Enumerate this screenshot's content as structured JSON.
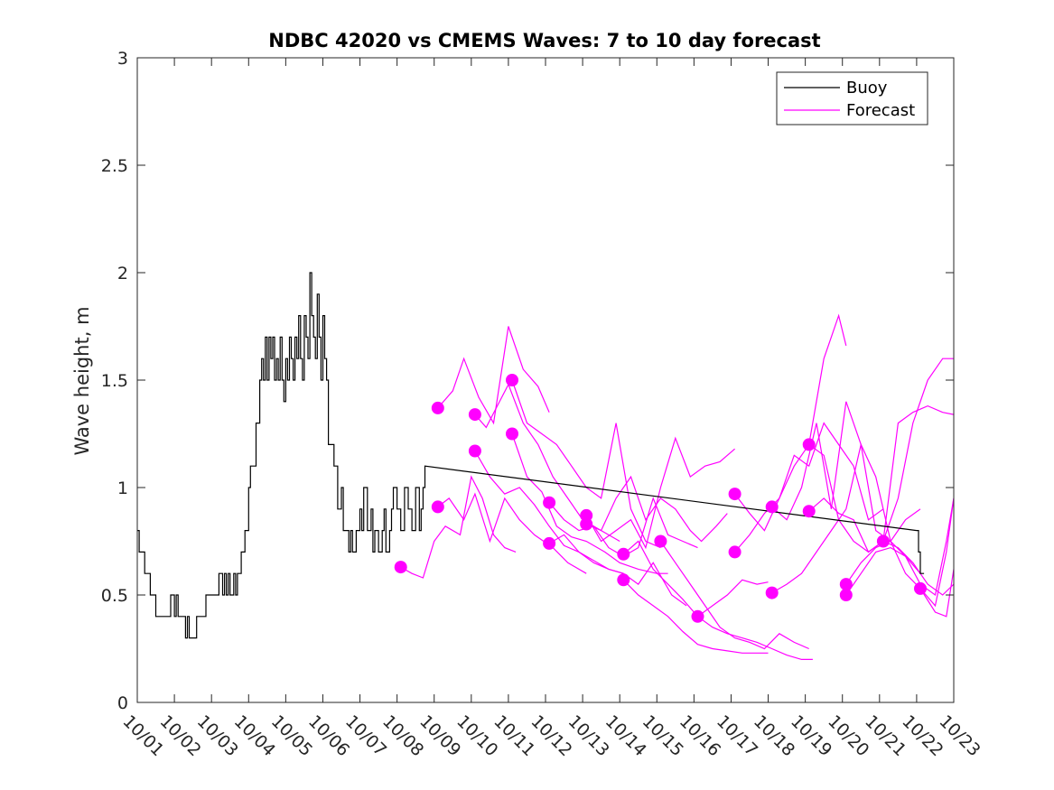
{
  "chart_data": {
    "type": "line",
    "title": "NDBC 42020 vs CMEMS Waves: 7 to 10 day forecast",
    "xlabel": "",
    "ylabel": "Wave height, m",
    "xlim": [
      1,
      23
    ],
    "ylim": [
      0,
      3
    ],
    "y_ticks": [
      0,
      0.5,
      1,
      1.5,
      2,
      2.5,
      3
    ],
    "y_tick_labels": [
      "0",
      "0.5",
      "1",
      "1.5",
      "2",
      "2.5",
      "3"
    ],
    "x_ticks": [
      1,
      2,
      3,
      4,
      5,
      6,
      7,
      8,
      9,
      10,
      11,
      12,
      13,
      14,
      15,
      16,
      17,
      18,
      19,
      20,
      21,
      22,
      23
    ],
    "x_tick_labels": [
      "10/01",
      "10/02",
      "10/03",
      "10/04",
      "10/05",
      "10/06",
      "10/07",
      "10/08",
      "10/09",
      "10/10",
      "10/11",
      "10/12",
      "10/13",
      "10/14",
      "10/15",
      "10/16",
      "10/17",
      "10/18",
      "10/19",
      "10/20",
      "10/21",
      "10/22",
      "10/23"
    ],
    "legend": {
      "position": "top-right",
      "entries": [
        "Buoy",
        "Forecast"
      ]
    },
    "colors": {
      "buoy": "#000000",
      "forecast": "#ff00ff",
      "axis": "#262626"
    },
    "buoy": {
      "name": "Buoy",
      "x": [
        1.0,
        1.05,
        1.1,
        1.2,
        1.3,
        1.35,
        1.4,
        1.5,
        1.55,
        1.6,
        1.7,
        1.8,
        1.9,
        2.0,
        2.05,
        2.1,
        2.15,
        2.2,
        2.3,
        2.35,
        2.4,
        2.45,
        2.5,
        2.6,
        2.7,
        2.8,
        2.85,
        2.9,
        3.0,
        3.1,
        3.2,
        3.3,
        3.35,
        3.4,
        3.45,
        3.5,
        3.6,
        3.65,
        3.7,
        3.75,
        3.8,
        3.9,
        4.0,
        4.05,
        4.1,
        4.2,
        4.3,
        4.35,
        4.4,
        4.45,
        4.5,
        4.55,
        4.6,
        4.65,
        4.7,
        4.75,
        4.8,
        4.85,
        4.9,
        4.95,
        5.0,
        5.05,
        5.1,
        5.15,
        5.2,
        5.25,
        5.3,
        5.35,
        5.4,
        5.45,
        5.5,
        5.55,
        5.6,
        5.65,
        5.7,
        5.75,
        5.8,
        5.85,
        5.9,
        5.95,
        6.0,
        6.05,
        6.1,
        6.15,
        6.2,
        6.3,
        6.4,
        6.5,
        6.55,
        6.6,
        6.7,
        6.75,
        6.8,
        6.9,
        7.0,
        7.05,
        7.1,
        7.2,
        7.3,
        7.35,
        7.4,
        7.5,
        7.6,
        7.65,
        7.7,
        7.8,
        7.85,
        7.9,
        8.0,
        8.1,
        8.2,
        8.3,
        8.4,
        8.5,
        8.6,
        8.65,
        8.7,
        8.75,
        22.0,
        22.05,
        22.1,
        22.15,
        22.2
      ],
      "values": [
        0.8,
        0.7,
        0.7,
        0.6,
        0.6,
        0.5,
        0.5,
        0.4,
        0.4,
        0.4,
        0.4,
        0.4,
        0.5,
        0.4,
        0.5,
        0.4,
        0.4,
        0.4,
        0.3,
        0.4,
        0.3,
        0.3,
        0.3,
        0.4,
        0.4,
        0.4,
        0.5,
        0.5,
        0.5,
        0.5,
        0.6,
        0.5,
        0.6,
        0.5,
        0.6,
        0.5,
        0.6,
        0.5,
        0.6,
        0.6,
        0.7,
        0.8,
        1.0,
        1.1,
        1.1,
        1.3,
        1.5,
        1.6,
        1.5,
        1.7,
        1.5,
        1.7,
        1.6,
        1.7,
        1.5,
        1.6,
        1.5,
        1.7,
        1.5,
        1.4,
        1.6,
        1.5,
        1.7,
        1.6,
        1.5,
        1.7,
        1.6,
        1.8,
        1.6,
        1.5,
        1.8,
        1.7,
        1.6,
        2.0,
        1.8,
        1.7,
        1.6,
        1.9,
        1.7,
        1.5,
        1.8,
        1.6,
        1.5,
        1.2,
        1.2,
        1.1,
        0.9,
        1.0,
        0.8,
        0.8,
        0.7,
        0.8,
        0.7,
        0.8,
        0.9,
        0.8,
        1.0,
        0.8,
        0.9,
        0.7,
        0.8,
        0.7,
        0.8,
        0.9,
        0.7,
        0.8,
        0.9,
        1.0,
        0.9,
        0.8,
        1.0,
        0.9,
        0.8,
        1.0,
        0.8,
        0.9,
        1.0,
        1.1,
        0.8,
        0.7,
        0.6,
        0.6,
        0.6
      ]
    },
    "forecast": {
      "name": "Forecast",
      "series": [
        {
          "x": [
            8.1,
            8.4,
            8.7,
            9.0,
            9.3,
            9.7,
            10.0,
            10.3,
            10.6,
            10.9,
            11.2
          ],
          "values": [
            0.63,
            0.6,
            0.58,
            0.75,
            0.82,
            0.78,
            1.05,
            0.95,
            0.78,
            0.72,
            0.7
          ]
        },
        {
          "x": [
            9.1,
            9.5,
            9.8,
            10.2,
            10.6,
            11.0,
            11.4,
            11.8,
            12.1
          ],
          "values": [
            1.37,
            1.45,
            1.6,
            1.42,
            1.3,
            1.75,
            1.55,
            1.47,
            1.35
          ]
        },
        {
          "x": [
            9.1,
            9.4,
            9.8,
            10.1,
            10.5,
            10.9,
            11.3,
            11.7,
            12.2,
            12.6,
            13.1
          ],
          "values": [
            0.91,
            0.95,
            0.85,
            0.97,
            0.75,
            0.95,
            0.85,
            0.78,
            0.72,
            0.65,
            0.6
          ]
        },
        {
          "x": [
            10.1,
            10.4,
            10.7,
            11.0,
            11.4,
            11.8,
            12.2,
            12.6,
            13.0,
            13.5,
            14.0
          ],
          "values": [
            1.34,
            1.28,
            1.38,
            1.48,
            1.3,
            1.2,
            1.05,
            0.95,
            0.85,
            0.8,
            0.75
          ]
        },
        {
          "x": [
            10.1,
            10.5,
            10.9,
            11.3,
            11.7,
            12.1,
            12.5,
            12.9,
            13.3,
            13.7,
            14.1
          ],
          "values": [
            1.17,
            1.05,
            0.97,
            1.0,
            0.92,
            0.82,
            0.73,
            0.7,
            0.66,
            0.62,
            0.6
          ]
        },
        {
          "x": [
            11.1,
            11.5,
            11.9,
            12.3,
            12.7,
            13.1,
            13.5,
            13.9,
            14.3,
            14.7,
            15.1
          ],
          "values": [
            1.5,
            1.3,
            1.25,
            1.2,
            1.1,
            1.0,
            0.95,
            1.3,
            0.9,
            0.75,
            0.72
          ]
        },
        {
          "x": [
            11.1,
            11.5,
            11.9,
            12.3,
            12.7,
            13.1,
            13.6,
            14.0,
            14.5,
            15.0,
            15.3
          ],
          "values": [
            1.25,
            1.05,
            0.98,
            0.82,
            0.77,
            0.75,
            0.7,
            0.65,
            0.62,
            0.6,
            0.6
          ]
        },
        {
          "x": [
            12.1,
            12.5,
            12.9,
            13.3,
            13.7,
            14.1,
            14.5,
            14.9,
            15.3,
            15.7,
            16.1
          ],
          "values": [
            0.93,
            0.85,
            0.8,
            0.82,
            0.72,
            0.68,
            0.72,
            0.95,
            0.78,
            0.75,
            0.72
          ]
        },
        {
          "x": [
            12.1,
            12.5,
            12.9,
            13.3,
            13.7,
            14.1,
            14.5,
            14.9,
            15.4,
            15.8
          ],
          "values": [
            0.74,
            0.78,
            0.7,
            0.65,
            0.62,
            0.6,
            0.55,
            0.65,
            0.5,
            0.45
          ]
        },
        {
          "x": [
            13.1,
            13.5,
            13.9,
            14.3,
            14.7,
            15.1,
            15.5,
            15.9,
            16.3,
            16.7,
            17.1
          ],
          "values": [
            0.87,
            0.75,
            0.8,
            0.85,
            0.72,
            1.0,
            1.23,
            1.05,
            1.1,
            1.12,
            1.18
          ]
        },
        {
          "x": [
            13.1,
            13.5,
            13.9,
            14.3,
            14.7,
            15.1,
            15.5,
            15.9,
            16.2,
            16.6,
            16.9
          ],
          "values": [
            0.83,
            0.8,
            0.95,
            1.05,
            0.85,
            0.95,
            0.9,
            0.8,
            0.75,
            0.82,
            0.88
          ]
        },
        {
          "x": [
            14.1,
            14.5,
            14.9,
            15.3,
            15.7,
            16.1,
            16.5,
            16.9,
            17.3,
            17.7,
            18.0
          ],
          "values": [
            0.69,
            0.75,
            0.62,
            0.55,
            0.48,
            0.4,
            0.45,
            0.5,
            0.57,
            0.55,
            0.56
          ]
        },
        {
          "x": [
            14.1,
            14.5,
            14.9,
            15.3,
            15.7,
            16.1,
            16.5,
            16.9,
            17.3,
            17.7,
            18.0
          ],
          "values": [
            0.57,
            0.5,
            0.45,
            0.4,
            0.33,
            0.27,
            0.25,
            0.24,
            0.23,
            0.23,
            0.23
          ]
        },
        {
          "x": [
            15.1,
            15.5,
            15.9,
            16.3,
            16.7,
            17.1,
            17.5,
            17.9,
            18.3,
            18.7,
            19.1
          ],
          "values": [
            0.75,
            0.65,
            0.55,
            0.45,
            0.35,
            0.3,
            0.28,
            0.25,
            0.32,
            0.28,
            0.25
          ]
        },
        {
          "x": [
            16.1,
            16.5,
            16.9,
            17.3,
            17.7,
            18.1,
            18.5,
            18.9,
            19.2
          ],
          "values": [
            0.4,
            0.35,
            0.32,
            0.3,
            0.28,
            0.25,
            0.22,
            0.2,
            0.2
          ]
        },
        {
          "x": [
            17.1,
            17.5,
            17.9,
            18.3,
            18.7,
            19.1,
            19.5,
            19.9,
            20.1
          ],
          "values": [
            0.97,
            0.88,
            0.8,
            0.95,
            1.1,
            1.2,
            1.6,
            1.8,
            1.66
          ]
        },
        {
          "x": [
            17.1,
            17.5,
            17.9,
            18.3,
            18.7,
            19.1,
            19.5,
            19.9,
            20.3,
            20.7,
            21.1
          ],
          "values": [
            0.7,
            0.78,
            0.88,
            0.95,
            1.15,
            1.1,
            1.3,
            1.2,
            1.1,
            0.85,
            0.9
          ]
        },
        {
          "x": [
            18.1,
            18.5,
            18.9,
            19.3,
            19.7,
            20.1,
            20.5,
            20.9,
            21.3,
            21.7,
            22.1
          ],
          "values": [
            0.91,
            0.85,
            1.0,
            1.3,
            0.9,
            1.4,
            1.2,
            0.8,
            0.75,
            0.85,
            0.9
          ]
        },
        {
          "x": [
            18.1,
            18.5,
            18.9,
            19.3,
            19.7,
            20.1,
            20.5,
            20.9,
            21.3,
            21.7,
            22.1
          ],
          "values": [
            0.51,
            0.55,
            0.6,
            0.7,
            0.8,
            0.9,
            1.2,
            1.05,
            0.75,
            0.68,
            0.6
          ]
        },
        {
          "x": [
            19.1,
            19.5,
            19.9,
            20.3,
            20.7,
            21.1,
            21.5,
            21.9,
            22.3,
            22.7,
            23.0
          ],
          "values": [
            1.2,
            1.15,
            0.85,
            0.75,
            0.7,
            0.75,
            1.3,
            1.35,
            1.38,
            1.35,
            1.34
          ]
        },
        {
          "x": [
            19.1,
            19.5,
            19.9,
            20.3,
            20.7,
            21.1,
            21.5,
            21.9,
            22.3,
            22.7,
            23.0
          ],
          "values": [
            0.89,
            0.95,
            0.88,
            0.85,
            0.7,
            0.75,
            0.95,
            1.3,
            1.5,
            1.6,
            1.6
          ]
        },
        {
          "x": [
            20.1,
            20.5,
            20.9,
            21.3,
            21.7,
            22.1,
            22.5,
            22.8,
            23.0
          ],
          "values": [
            0.55,
            0.65,
            0.72,
            0.75,
            0.6,
            0.53,
            0.42,
            0.4,
            0.62
          ]
        },
        {
          "x": [
            20.1,
            20.5,
            20.9,
            21.3,
            21.7,
            22.1,
            22.5,
            22.8,
            23.0
          ],
          "values": [
            0.5,
            0.6,
            0.7,
            0.72,
            0.68,
            0.55,
            0.5,
            0.75,
            0.95
          ]
        },
        {
          "x": [
            21.1,
            21.5,
            21.9,
            22.3,
            22.7,
            23.0
          ],
          "values": [
            0.75,
            0.72,
            0.65,
            0.55,
            0.5,
            0.55
          ]
        },
        {
          "x": [
            22.1,
            22.5,
            22.8,
            23.0
          ],
          "values": [
            0.53,
            0.45,
            0.7,
            0.95
          ]
        }
      ],
      "markers": {
        "x": [
          8.1,
          9.1,
          9.1,
          10.1,
          10.1,
          11.1,
          11.1,
          12.1,
          12.1,
          13.1,
          13.1,
          14.1,
          14.1,
          15.1,
          16.1,
          17.1,
          17.1,
          18.1,
          18.1,
          19.1,
          19.1,
          20.1,
          20.1,
          21.1,
          22.1
        ],
        "values": [
          0.63,
          1.37,
          0.91,
          1.34,
          1.17,
          1.5,
          1.25,
          0.93,
          0.74,
          0.87,
          0.83,
          0.69,
          0.57,
          0.75,
          0.4,
          0.97,
          0.7,
          0.91,
          0.51,
          1.2,
          0.89,
          0.55,
          0.5,
          0.75,
          0.53
        ]
      }
    }
  }
}
